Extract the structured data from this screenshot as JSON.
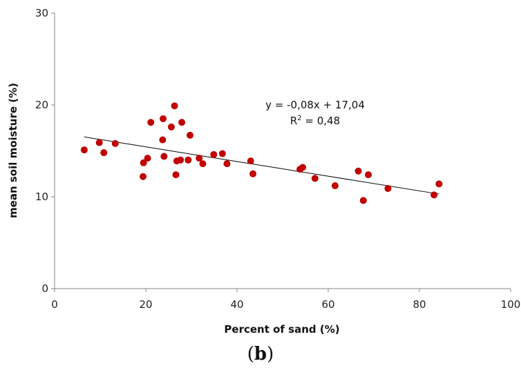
{
  "chart_data": {
    "type": "scatter",
    "xlabel": "Percent of sand (%)",
    "ylabel": "mean soil moisture (%)",
    "xlim": [
      0,
      100
    ],
    "ylim": [
      0,
      30
    ],
    "xticks": [
      0,
      20,
      40,
      60,
      80,
      100
    ],
    "yticks": [
      0,
      10,
      20,
      30
    ],
    "grid": false,
    "point_color": "#c00000",
    "trendline_color": "#000000",
    "points": [
      {
        "x": 6.5,
        "y": 15.1
      },
      {
        "x": 9.8,
        "y": 15.9
      },
      {
        "x": 10.8,
        "y": 14.8
      },
      {
        "x": 13.3,
        "y": 15.8
      },
      {
        "x": 19.4,
        "y": 12.2
      },
      {
        "x": 19.5,
        "y": 13.7
      },
      {
        "x": 20.4,
        "y": 14.2
      },
      {
        "x": 21.1,
        "y": 18.1
      },
      {
        "x": 23.7,
        "y": 16.2
      },
      {
        "x": 23.8,
        "y": 18.5
      },
      {
        "x": 24.0,
        "y": 14.4
      },
      {
        "x": 25.6,
        "y": 17.6
      },
      {
        "x": 26.3,
        "y": 19.9
      },
      {
        "x": 26.6,
        "y": 12.4
      },
      {
        "x": 26.8,
        "y": 13.9
      },
      {
        "x": 27.6,
        "y": 14.0
      },
      {
        "x": 27.9,
        "y": 18.1
      },
      {
        "x": 29.3,
        "y": 14.0
      },
      {
        "x": 29.7,
        "y": 16.7
      },
      {
        "x": 31.7,
        "y": 14.2
      },
      {
        "x": 32.5,
        "y": 13.6
      },
      {
        "x": 34.9,
        "y": 14.6
      },
      {
        "x": 36.8,
        "y": 14.7
      },
      {
        "x": 37.8,
        "y": 13.6
      },
      {
        "x": 43.0,
        "y": 13.9
      },
      {
        "x": 43.5,
        "y": 12.5
      },
      {
        "x": 53.8,
        "y": 13.0
      },
      {
        "x": 54.4,
        "y": 13.2
      },
      {
        "x": 57.1,
        "y": 12.0
      },
      {
        "x": 61.5,
        "y": 11.2
      },
      {
        "x": 66.6,
        "y": 12.8
      },
      {
        "x": 67.7,
        "y": 9.6
      },
      {
        "x": 68.8,
        "y": 12.4
      },
      {
        "x": 73.1,
        "y": 10.9
      },
      {
        "x": 83.2,
        "y": 10.2
      },
      {
        "x": 84.3,
        "y": 11.4
      }
    ],
    "trendline": {
      "x_start": 6.5,
      "x_end": 84.3,
      "slope": -0.08,
      "intercept": 17.04,
      "equation": "y = -0,08x + 17,04",
      "r2_prefix": "R",
      "r2_sup": "2",
      "r2_value": " = 0,48"
    }
  },
  "caption": {
    "open": "(",
    "letter": "b",
    "close": ")"
  }
}
